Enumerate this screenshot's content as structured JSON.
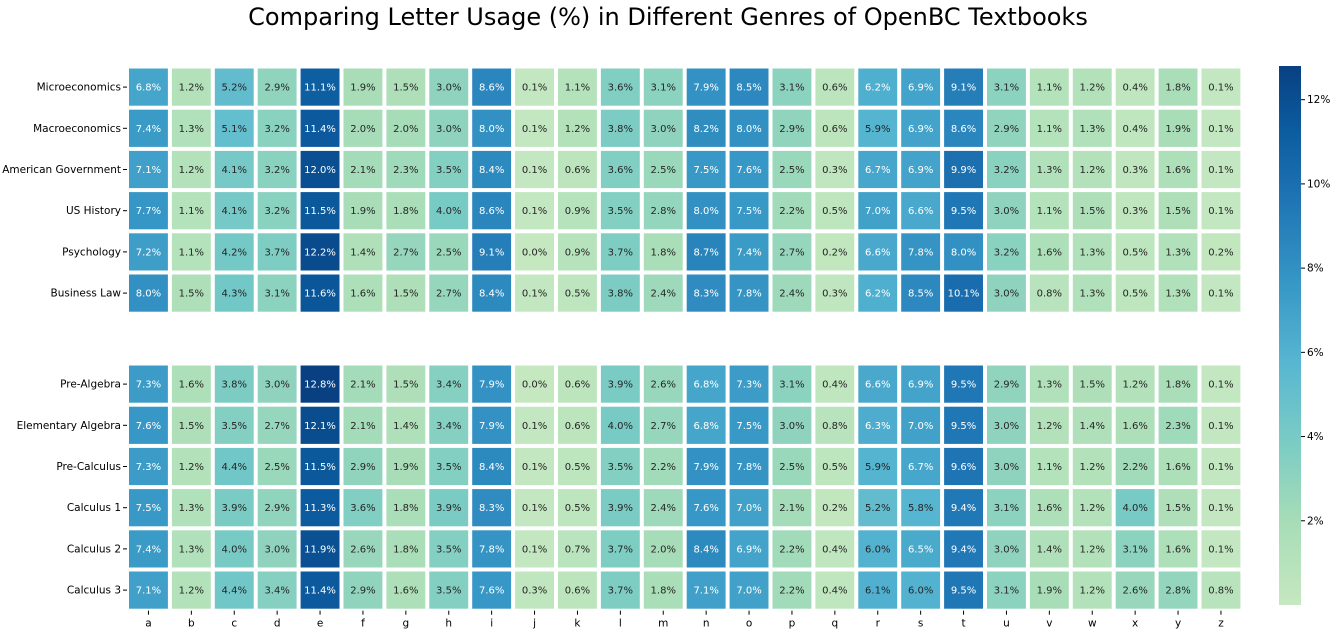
{
  "chart_data": {
    "type": "heatmap",
    "title": "Comparing Letter Usage (%) in Different Genres of OpenBC Textbooks",
    "value_format": "percent, 1 decimal",
    "colormap": "GnBu",
    "colors": {
      "low": "#c5e8c0",
      "mid": "#57b6d1",
      "high": "#084081"
    },
    "columns": [
      "a",
      "b",
      "c",
      "d",
      "e",
      "f",
      "g",
      "h",
      "i",
      "j",
      "k",
      "l",
      "m",
      "n",
      "o",
      "p",
      "q",
      "r",
      "s",
      "t",
      "u",
      "v",
      "w",
      "x",
      "y",
      "z"
    ],
    "groups": [
      {
        "rows": [
          {
            "label": "Microeconomics",
            "values": [
              6.8,
              1.2,
              5.2,
              2.9,
              11.1,
              1.9,
              1.5,
              3.0,
              8.6,
              0.1,
              1.1,
              3.6,
              3.1,
              7.9,
              8.5,
              3.1,
              0.6,
              6.2,
              6.9,
              9.1,
              3.1,
              1.1,
              1.2,
              0.4,
              1.8,
              0.1
            ]
          },
          {
            "label": "Macroeconomics",
            "values": [
              7.4,
              1.3,
              5.1,
              3.2,
              11.4,
              2.0,
              2.0,
              3.0,
              8.0,
              0.1,
              1.2,
              3.8,
              3.0,
              8.2,
              8.0,
              2.9,
              0.6,
              5.9,
              6.9,
              8.6,
              2.9,
              1.1,
              1.3,
              0.4,
              1.9,
              0.1
            ]
          },
          {
            "label": "American Government",
            "values": [
              7.1,
              1.2,
              4.1,
              3.2,
              12.0,
              2.1,
              2.3,
              3.5,
              8.4,
              0.1,
              0.6,
              3.6,
              2.5,
              7.5,
              7.6,
              2.5,
              0.3,
              6.7,
              6.9,
              9.9,
              3.2,
              1.3,
              1.2,
              0.3,
              1.6,
              0.1
            ]
          },
          {
            "label": "US History",
            "values": [
              7.7,
              1.1,
              4.1,
              3.2,
              11.5,
              1.9,
              1.8,
              4.0,
              8.6,
              0.1,
              0.9,
              3.5,
              2.8,
              8.0,
              7.5,
              2.2,
              0.5,
              7.0,
              6.6,
              9.5,
              3.0,
              1.1,
              1.5,
              0.3,
              1.5,
              0.1
            ]
          },
          {
            "label": "Psychology",
            "values": [
              7.2,
              1.1,
              4.2,
              3.7,
              12.2,
              1.4,
              2.7,
              2.5,
              9.1,
              0.0,
              0.9,
              3.7,
              1.8,
              8.7,
              7.4,
              2.7,
              0.2,
              6.6,
              7.8,
              8.0,
              3.2,
              1.6,
              1.3,
              0.5,
              1.3,
              0.2
            ]
          },
          {
            "label": "Business Law",
            "values": [
              8.0,
              1.5,
              4.3,
              3.1,
              11.6,
              1.6,
              1.5,
              2.7,
              8.4,
              0.1,
              0.5,
              3.8,
              2.4,
              8.3,
              7.8,
              2.4,
              0.3,
              6.2,
              8.5,
              10.1,
              3.0,
              0.8,
              1.3,
              0.5,
              1.3,
              0.1
            ]
          }
        ]
      },
      {
        "rows": [
          {
            "label": "Pre-Algebra",
            "values": [
              7.3,
              1.6,
              3.8,
              3.0,
              12.8,
              2.1,
              1.5,
              3.4,
              7.9,
              0.0,
              0.6,
              3.9,
              2.6,
              6.8,
              7.3,
              3.1,
              0.4,
              6.6,
              6.9,
              9.5,
              2.9,
              1.3,
              1.5,
              1.2,
              1.8,
              0.1
            ]
          },
          {
            "label": "Elementary Algebra",
            "values": [
              7.6,
              1.5,
              3.5,
              2.7,
              12.1,
              2.1,
              1.4,
              3.4,
              7.9,
              0.1,
              0.6,
              4.0,
              2.7,
              6.8,
              7.5,
              3.0,
              0.8,
              6.3,
              7.0,
              9.5,
              3.0,
              1.2,
              1.4,
              1.6,
              2.3,
              0.1
            ]
          },
          {
            "label": "Pre-Calculus",
            "values": [
              7.3,
              1.2,
              4.4,
              2.5,
              11.5,
              2.9,
              1.9,
              3.5,
              8.4,
              0.1,
              0.5,
              3.5,
              2.2,
              7.9,
              7.8,
              2.5,
              0.5,
              5.9,
              6.7,
              9.6,
              3.0,
              1.1,
              1.2,
              2.2,
              1.6,
              0.1
            ]
          },
          {
            "label": "Calculus 1",
            "values": [
              7.5,
              1.3,
              3.9,
              2.9,
              11.3,
              3.6,
              1.8,
              3.9,
              8.3,
              0.1,
              0.5,
              3.9,
              2.4,
              7.6,
              7.0,
              2.1,
              0.2,
              5.2,
              5.8,
              9.4,
              3.1,
              1.6,
              1.2,
              4.0,
              1.5,
              0.1
            ]
          },
          {
            "label": "Calculus 2",
            "values": [
              7.4,
              1.3,
              4.0,
              3.0,
              11.9,
              2.6,
              1.8,
              3.5,
              7.8,
              0.1,
              0.7,
              3.7,
              2.0,
              8.4,
              6.9,
              2.2,
              0.4,
              6.0,
              6.5,
              9.4,
              3.0,
              1.4,
              1.2,
              3.1,
              1.6,
              0.1
            ]
          },
          {
            "label": "Calculus 3",
            "values": [
              7.1,
              1.2,
              4.4,
              3.4,
              11.4,
              2.9,
              1.6,
              3.5,
              7.6,
              0.3,
              0.6,
              3.7,
              1.8,
              7.1,
              7.0,
              2.2,
              0.4,
              6.1,
              6.0,
              9.5,
              3.1,
              1.9,
              1.2,
              2.6,
              2.8,
              0.8
            ]
          }
        ]
      }
    ],
    "colorbar": {
      "ticks": [
        2,
        4,
        6,
        8,
        10,
        12
      ],
      "tick_labels": [
        "2%",
        "4%",
        "6%",
        "8%",
        "10%",
        "12%"
      ],
      "vmin": 0.0,
      "vmax": 12.8
    }
  }
}
